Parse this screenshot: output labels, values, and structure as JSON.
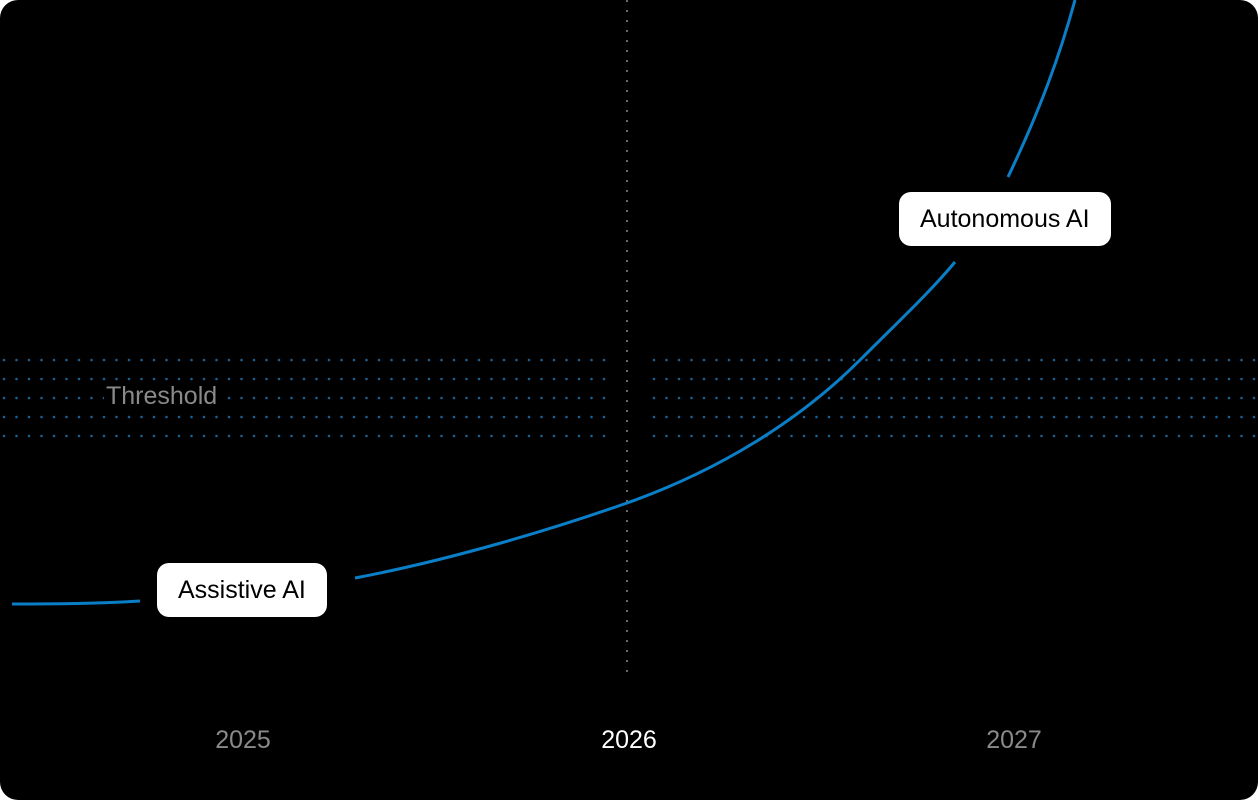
{
  "chart_data": {
    "type": "line",
    "x_tick_labels": [
      "2025",
      "2026",
      "2027"
    ],
    "highlighted_tick": "2026",
    "band_label": "Threshold",
    "annotations": [
      {
        "label": "Assistive AI"
      },
      {
        "label": "Autonomous AI"
      }
    ],
    "series": [
      {
        "x": [
          "2025",
          "2026",
          "2027"
        ],
        "y": [
          1,
          2.8,
          11
        ],
        "color": "#0a7fc7"
      }
    ],
    "curve_shape": "exponential",
    "grid": false,
    "colors": {
      "background": "#000000",
      "curve": "#0a7fc7",
      "band_dots": "#1f5f8f",
      "vertical_guide": "#6a6a6a",
      "label_background": "#ffffff"
    }
  }
}
